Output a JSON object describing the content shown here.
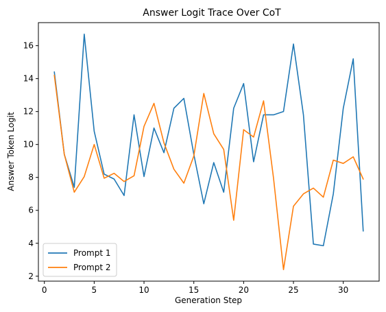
{
  "chart_data": {
    "type": "line",
    "title": "Answer Logit Trace Over CoT",
    "xlabel": "Generation Step",
    "ylabel": "Answer Token Logit",
    "xlim": [
      -0.6,
      33.6
    ],
    "ylim": [
      1.7,
      17.4
    ],
    "xticks": [
      0,
      5,
      10,
      15,
      20,
      25,
      30
    ],
    "yticks": [
      2,
      4,
      6,
      8,
      10,
      12,
      14,
      16
    ],
    "grid": false,
    "legend_position": "lower-left",
    "x": [
      1,
      2,
      3,
      4,
      5,
      6,
      7,
      8,
      9,
      10,
      11,
      12,
      13,
      14,
      15,
      16,
      17,
      18,
      19,
      20,
      21,
      22,
      23,
      24,
      25,
      26,
      27,
      28,
      29,
      30,
      31,
      32
    ],
    "series": [
      {
        "name": "Prompt 1",
        "color": "#1f77b4",
        "values": [
          14.4,
          9.4,
          7.4,
          16.7,
          10.8,
          8.2,
          7.9,
          6.9,
          11.8,
          8.05,
          11.0,
          9.5,
          12.2,
          12.8,
          9.4,
          6.4,
          8.9,
          7.1,
          12.2,
          13.7,
          8.95,
          11.8,
          11.8,
          12.0,
          16.1,
          11.8,
          3.95,
          3.85,
          7.0,
          12.2,
          15.2,
          4.75
        ]
      },
      {
        "name": "Prompt 2",
        "color": "#ff7f0e",
        "values": [
          14.2,
          9.4,
          7.1,
          8.05,
          10.0,
          7.95,
          8.25,
          7.75,
          8.1,
          11.1,
          12.5,
          10.1,
          8.5,
          7.65,
          9.3,
          13.1,
          10.65,
          9.7,
          5.4,
          10.9,
          10.45,
          12.65,
          7.95,
          2.4,
          6.25,
          7.0,
          7.35,
          6.8,
          9.05,
          8.85,
          9.25,
          7.9
        ]
      }
    ]
  }
}
